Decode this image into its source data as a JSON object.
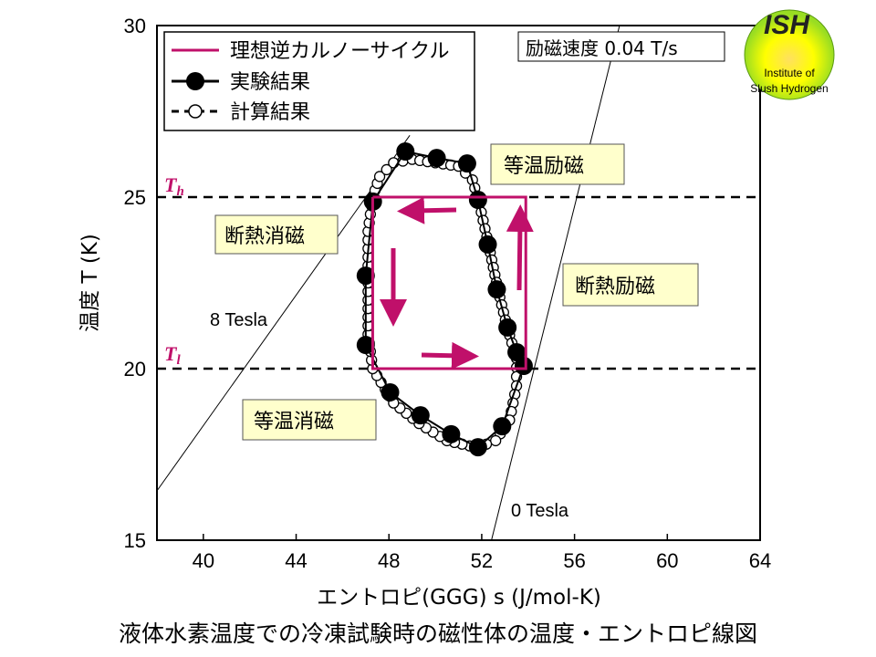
{
  "chart_data": {
    "type": "line",
    "title": "液体水素温度での冷凍試験時の磁性体の温度・エントロピ線図",
    "xlabel": "エントロピ(GGG) s (J/mol-K)",
    "ylabel": "温度 T (K)",
    "xlim": [
      38,
      64
    ],
    "ylim": [
      15,
      30
    ],
    "xticks": [
      40,
      44,
      48,
      52,
      56,
      60,
      64
    ],
    "yticks": [
      15,
      20,
      25,
      30
    ],
    "legend": {
      "position": "top-left",
      "entries": [
        "理想逆カルノーサイクル",
        "実験結果",
        "計算結果"
      ]
    },
    "series": [
      {
        "name": "理想逆カルノーサイクル",
        "color": "#c0106a",
        "points": [
          [
            47.3,
            25
          ],
          [
            53.9,
            25
          ],
          [
            53.9,
            20
          ],
          [
            47.3,
            20
          ],
          [
            47.3,
            25
          ]
        ]
      },
      {
        "name": "実験結果",
        "points": [
          [
            48.71,
            26.33
          ],
          [
            50.06,
            26.14
          ],
          [
            51.37,
            25.98
          ],
          [
            51.84,
            24.92
          ],
          [
            52.26,
            23.62
          ],
          [
            52.65,
            22.31
          ],
          [
            53.11,
            21.2
          ],
          [
            53.5,
            20.48
          ],
          [
            53.81,
            20.08
          ],
          [
            52.88,
            18.32
          ],
          [
            51.84,
            17.71
          ],
          [
            50.68,
            18.09
          ],
          [
            49.36,
            18.64
          ],
          [
            48.05,
            19.31
          ],
          [
            47.0,
            20.69
          ],
          [
            47.0,
            22.71
          ],
          [
            47.31,
            24.87
          ]
        ]
      },
      {
        "name": "計算結果",
        "points": [
          [
            47.3,
            25
          ],
          [
            47.6,
            25.6
          ],
          [
            48.2,
            26.0
          ],
          [
            49,
            26.1
          ],
          [
            50,
            26.0
          ],
          [
            51,
            25.9
          ],
          [
            51.6,
            25.5
          ],
          [
            51.9,
            24.8
          ],
          [
            52.3,
            23.6
          ],
          [
            52.7,
            22.3
          ],
          [
            53.1,
            21.2
          ],
          [
            53.5,
            20.3
          ],
          [
            53.5,
            19.5
          ],
          [
            53.2,
            18.5
          ],
          [
            52.6,
            17.9
          ],
          [
            51.8,
            17.7
          ],
          [
            50.5,
            17.9
          ],
          [
            49.3,
            18.4
          ],
          [
            48.2,
            19.0
          ],
          [
            47.3,
            20.0
          ],
          [
            47.1,
            21
          ],
          [
            47.1,
            22.5
          ],
          [
            47.1,
            24
          ],
          [
            47.3,
            25
          ]
        ]
      }
    ],
    "reference_lines": [
      {
        "label": "0 Tesla",
        "points": [
          [
            52.42,
            15
          ],
          [
            57.94,
            30
          ]
        ]
      },
      {
        "label": "8 Tesla",
        "points": [
          [
            38,
            16.44
          ],
          [
            48.9,
            26.8
          ]
        ]
      }
    ],
    "hlines": [
      {
        "label": "Th",
        "value": 25
      },
      {
        "label": "Tl",
        "value": 20
      }
    ],
    "annotations": {
      "rate": "励磁速度 0.04 T/s",
      "iso_mag": "等温励磁",
      "adi_demag": "断熱消磁",
      "adi_mag": "断熱励磁",
      "iso_demag": "等温消磁"
    }
  },
  "labels": {
    "th_T": "T",
    "th_sub": "h",
    "tl_T": "T",
    "tl_sub": "l",
    "t8": "8 Tesla",
    "t0": "0 Tesla"
  },
  "logo": {
    "name": "ISH",
    "line1": "Institute of",
    "line2": "Slush Hydrogen"
  },
  "colors": {
    "accent": "#c0106a",
    "box": "#ffffcc"
  }
}
